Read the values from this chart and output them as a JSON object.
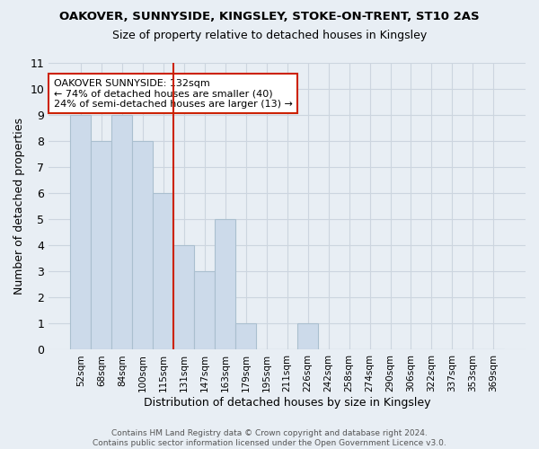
{
  "title1": "OAKOVER, SUNNYSIDE, KINGSLEY, STOKE-ON-TRENT, ST10 2AS",
  "title2": "Size of property relative to detached houses in Kingsley",
  "xlabel": "Distribution of detached houses by size in Kingsley",
  "ylabel": "Number of detached properties",
  "categories": [
    "52sqm",
    "68sqm",
    "84sqm",
    "100sqm",
    "115sqm",
    "131sqm",
    "147sqm",
    "163sqm",
    "179sqm",
    "195sqm",
    "211sqm",
    "226sqm",
    "242sqm",
    "258sqm",
    "274sqm",
    "290sqm",
    "306sqm",
    "322sqm",
    "337sqm",
    "353sqm",
    "369sqm"
  ],
  "values": [
    9,
    8,
    9,
    8,
    6,
    4,
    3,
    5,
    1,
    0,
    0,
    1,
    0,
    0,
    0,
    0,
    0,
    0,
    0,
    0,
    0
  ],
  "bar_color": "#ccdaea",
  "bar_edge_color": "#aabfcf",
  "grid_color": "#ccd5df",
  "vline_x": 4.5,
  "vline_color": "#cc2200",
  "annotation_text": "OAKOVER SUNNYSIDE: 132sqm\n← 74% of detached houses are smaller (40)\n24% of semi-detached houses are larger (13) →",
  "annotation_box_color": "#ffffff",
  "annotation_box_edge": "#cc2200",
  "ylim": [
    0,
    11
  ],
  "yticks": [
    0,
    1,
    2,
    3,
    4,
    5,
    6,
    7,
    8,
    9,
    10,
    11
  ],
  "footer": "Contains HM Land Registry data © Crown copyright and database right 2024.\nContains public sector information licensed under the Open Government Licence v3.0.",
  "bg_color": "#e8eef4"
}
